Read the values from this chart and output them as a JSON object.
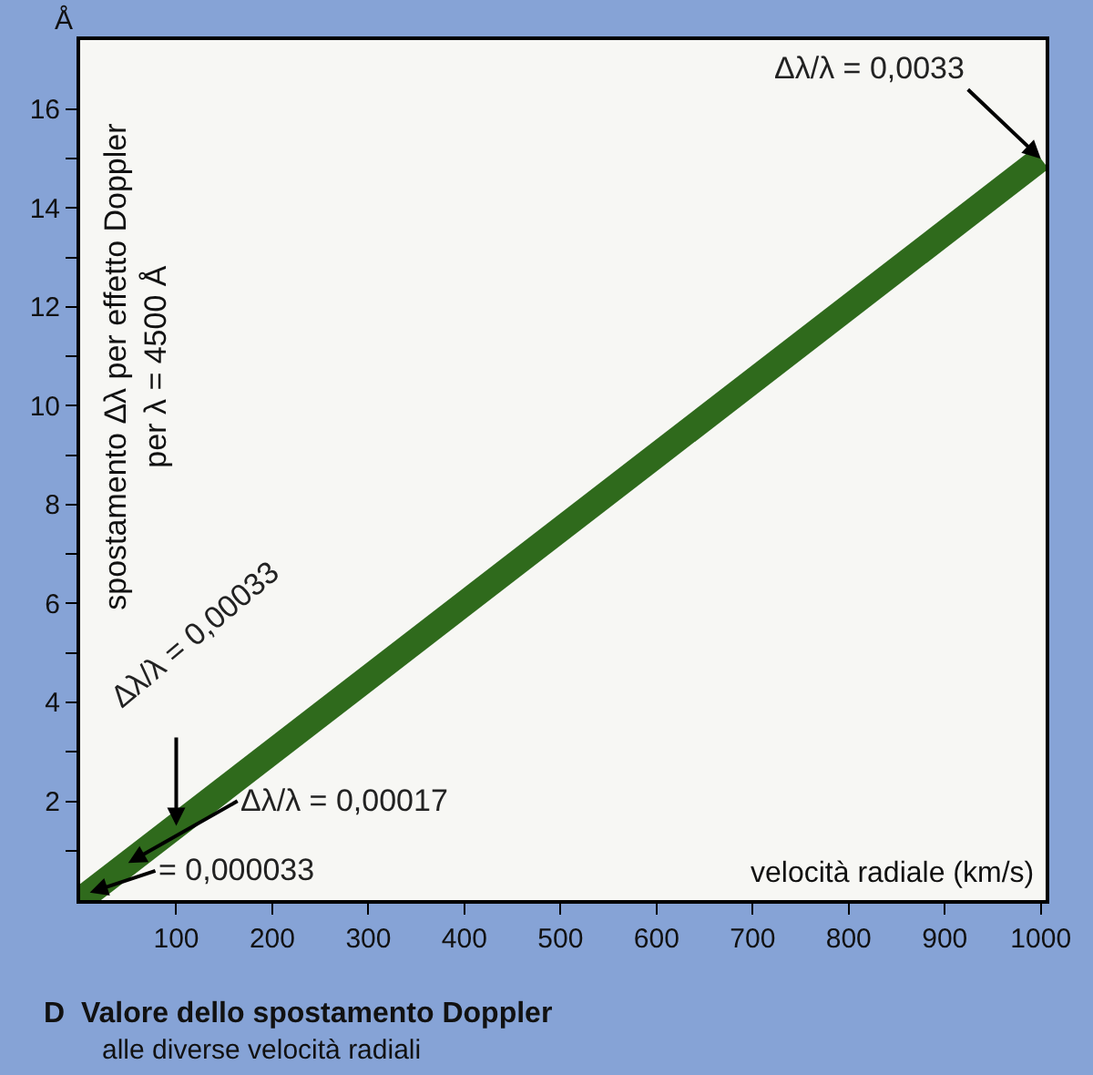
{
  "chart_data": {
    "type": "line",
    "title": "D  Valore dello spostamento Doppler",
    "subtitle": "alle diverse velocità radiali",
    "xlabel": "velocità radiale (km/s)",
    "ylabel": "spostamento Δλ per effetto Doppler\nper λ = 4500 Å",
    "x": [
      0,
      1000
    ],
    "series": [
      {
        "color": "#2f6a1c",
        "values": [
          0,
          15
        ]
      }
    ],
    "xlim": [
      0,
      1005
    ],
    "xticks": [
      100,
      200,
      300,
      400,
      500,
      600,
      700,
      800,
      900,
      1000
    ],
    "ylim": [
      0,
      17.4
    ],
    "yticks": [
      {
        "value": 1,
        "label": null
      },
      2,
      {
        "value": 3,
        "label": null
      },
      4,
      {
        "value": 5,
        "label": null
      },
      6,
      {
        "value": 7,
        "label": null
      },
      8,
      {
        "value": 9,
        "label": null
      },
      10,
      {
        "value": 11,
        "label": null
      },
      12,
      {
        "value": 13,
        "label": null
      },
      14,
      {
        "value": 15,
        "label": null
      },
      16
    ],
    "grid": false,
    "marker": "none",
    "line_style": "solid",
    "annotations": [
      {
        "text": "Δλ/λ = 0,0033",
        "x": 1000,
        "y": 15
      },
      {
        "text": "Δλ/λ = 0,00033",
        "x": 100,
        "y": 1.5
      },
      {
        "text": "Δλ/λ = 0,00017",
        "x": 50,
        "y": 0.75
      },
      {
        "text": "= 0,000033",
        "x": 10,
        "y": 0.15
      },
      "Å"
    ]
  }
}
